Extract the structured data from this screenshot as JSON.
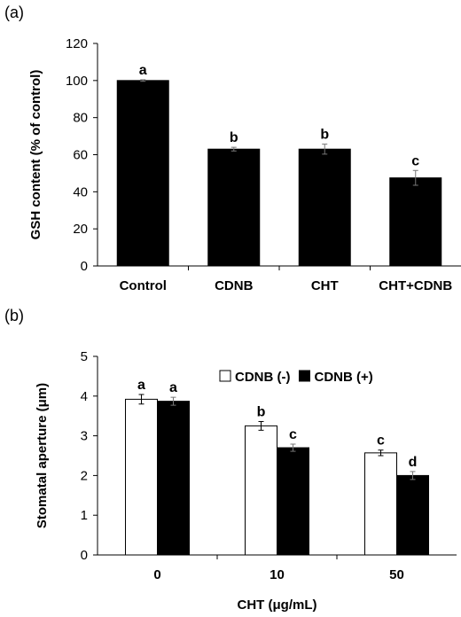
{
  "panels": {
    "a_label": "(a)",
    "b_label": "(b)"
  },
  "chart_data": [
    {
      "type": "bar",
      "title": "",
      "xlabel": "",
      "ylabel": "GSH content (% of control)",
      "ylim": [
        0,
        120
      ],
      "yticks": [
        0,
        20,
        40,
        60,
        80,
        100,
        120
      ],
      "categories": [
        "Control",
        "CDNB",
        "CHT",
        "CHT+CDNB"
      ],
      "series": [
        {
          "values": [
            100,
            63,
            63,
            47.5
          ],
          "errors": [
            0.4,
            1,
            2.7,
            4
          ],
          "letters": [
            "a",
            "b",
            "b",
            "c"
          ],
          "color": "#000000"
        }
      ],
      "grid": false,
      "legend": "none"
    },
    {
      "type": "bar",
      "title": "",
      "xlabel": "CHT (μg/mL)",
      "ylabel": "Stomatal aperture (μm)",
      "ylim": [
        0,
        5
      ],
      "yticks": [
        0,
        1,
        2,
        3,
        4,
        5
      ],
      "categories": [
        "0",
        "10",
        "50"
      ],
      "series": [
        {
          "name": "CDNB (-)",
          "values": [
            3.92,
            3.25,
            2.57
          ],
          "errors": [
            0.12,
            0.11,
            0.07
          ],
          "letters": [
            "a",
            "b",
            "c"
          ],
          "color": "#ffffff"
        },
        {
          "name": "CDNB (+)",
          "values": [
            3.87,
            2.7,
            2.0
          ],
          "errors": [
            0.1,
            0.09,
            0.1
          ],
          "letters": [
            "a",
            "c",
            "d"
          ],
          "color": "#000000"
        }
      ],
      "grid": false,
      "legend": "top-right"
    }
  ]
}
